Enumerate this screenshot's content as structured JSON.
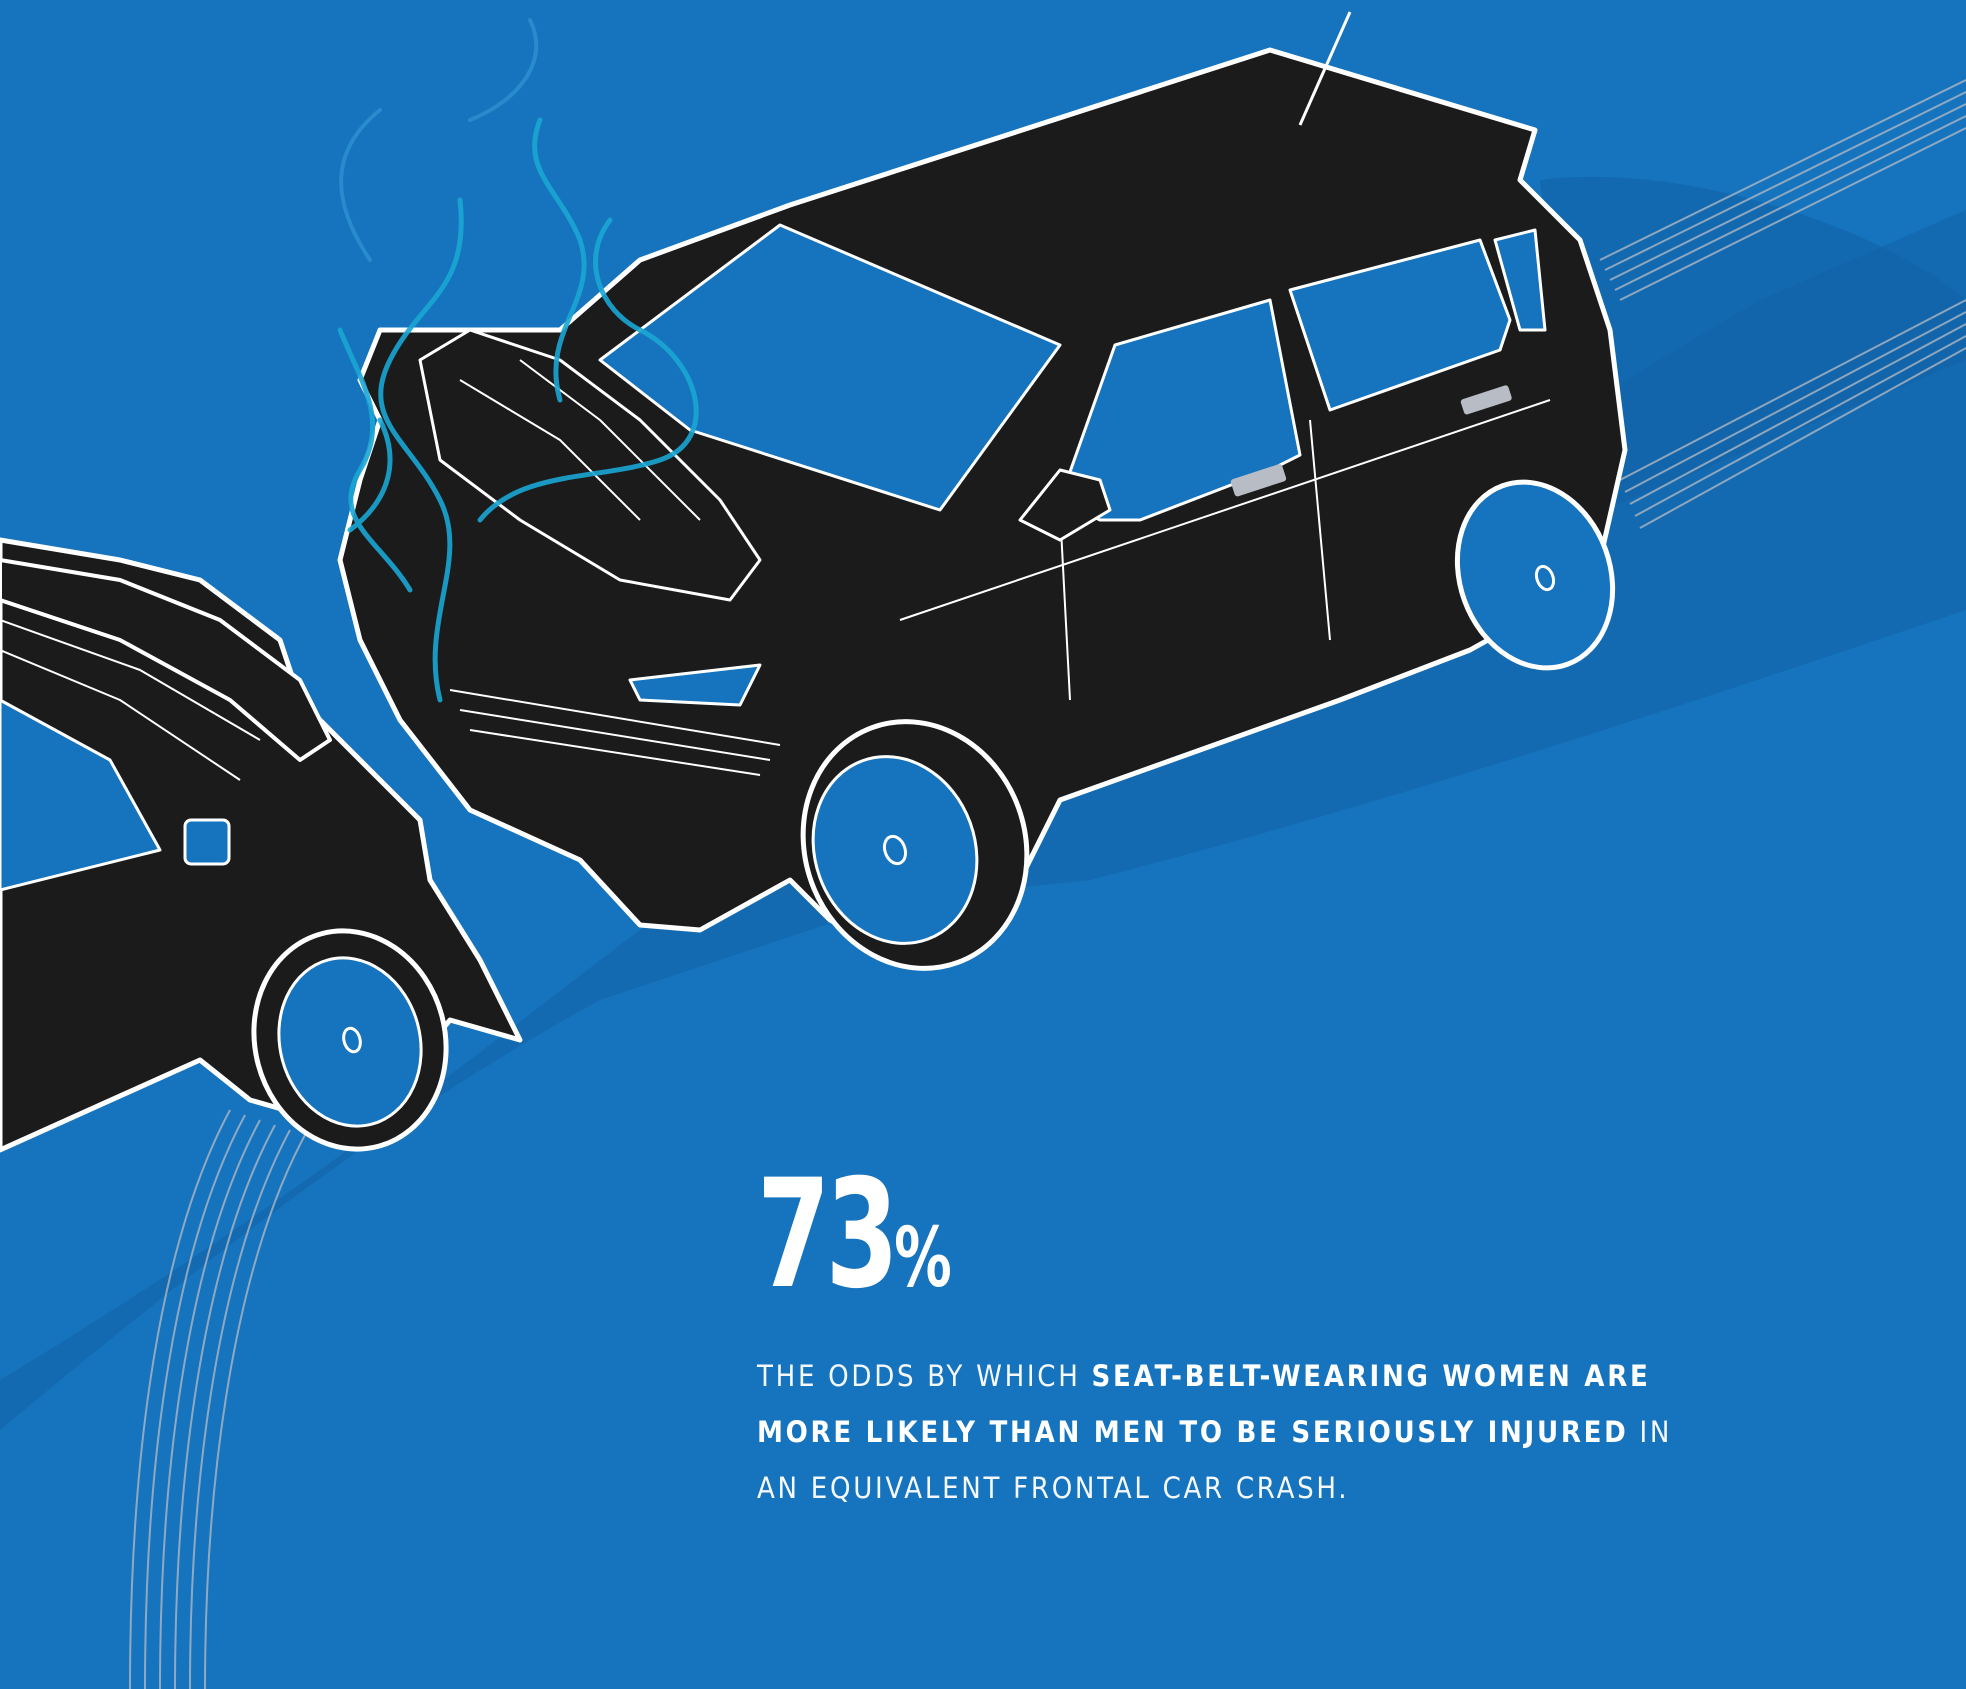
{
  "colors": {
    "background": "#1673bd",
    "shadow": "#1262a6",
    "car_body": "#1b1b1b",
    "outline": "#ffffff",
    "glass": "#1673bd",
    "smoke": "#19a6d4",
    "tire_lines": "#b8bcc4"
  },
  "illustration": {
    "subject": "two-car frontal crash",
    "icons": [
      "car-crash-illustration",
      "smoke-icon",
      "tire-tracks-icon"
    ]
  },
  "stat": {
    "number": "73",
    "percent_sign": "%",
    "caption_pre": "THE ODDS BY WHICH ",
    "caption_bold_1": "SEAT-BELT-WEARING WOMEN ARE MORE LIKELY THAN MEN TO BE SERIOUSLY INJURED",
    "caption_post": " IN AN EQUIVALENT FRONTAL CAR CRASH."
  }
}
